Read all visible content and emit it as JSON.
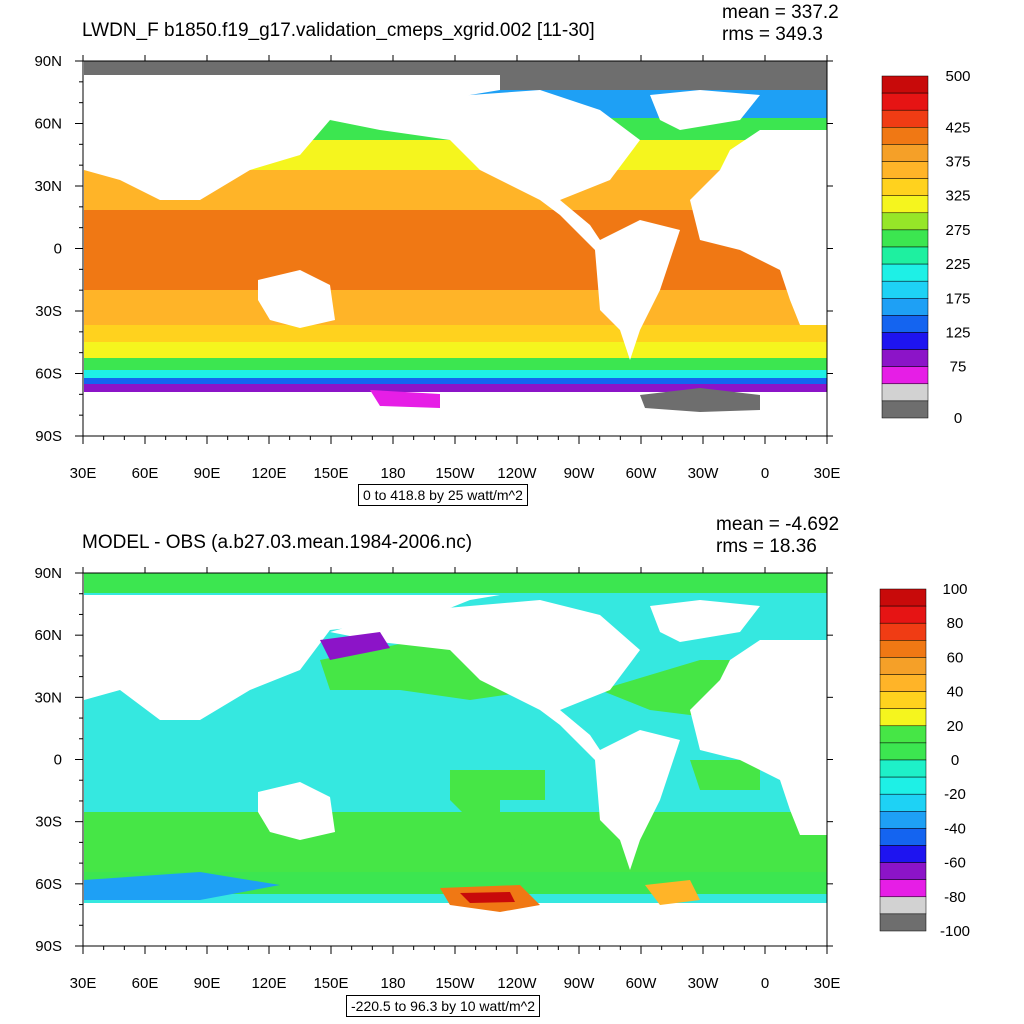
{
  "panels": [
    {
      "title": "LWDN_F b1850.f19_g17.validation_cmeps_xgrid.002 [11-30]",
      "mean_text": "mean = 337.2",
      "rms_text": "rms = 349.3",
      "range_note": "0 to 418.8 by 25 watt/m^2",
      "x_ticks": [
        "30E",
        "60E",
        "90E",
        "120E",
        "150E",
        "180",
        "150W",
        "120W",
        "90W",
        "60W",
        "30W",
        "0",
        "30E"
      ],
      "y_ticks": [
        "90N",
        "60N",
        "30N",
        "0",
        "30S",
        "60S",
        "90S"
      ],
      "colorbar": {
        "colors": [
          "#6e6e6e",
          "#d2d2d2",
          "#e61ee6",
          "#8c14c8",
          "#1e14f0",
          "#1464f0",
          "#1ea0f5",
          "#1ed2f5",
          "#1ef0e6",
          "#1ef0a0",
          "#3ce650",
          "#96e628",
          "#f5f51e",
          "#ffd21e",
          "#ffb428",
          "#f5a028",
          "#f07814",
          "#f03c14",
          "#e61414",
          "#c80a0a"
        ],
        "labels": [
          {
            "text": "500",
            "pos": 0
          },
          {
            "text": "425",
            "pos": 3
          },
          {
            "text": "375",
            "pos": 5
          },
          {
            "text": "325",
            "pos": 7
          },
          {
            "text": "275",
            "pos": 9
          },
          {
            "text": "225",
            "pos": 11
          },
          {
            "text": "175",
            "pos": 13
          },
          {
            "text": "125",
            "pos": 15
          },
          {
            "text": "75",
            "pos": 17
          },
          {
            "text": "0",
            "pos": 20
          }
        ]
      }
    },
    {
      "title": "MODEL - OBS (a.b27.03.mean.1984-2006.nc)",
      "mean_text": "mean = -4.692",
      "rms_text": "rms = 18.36",
      "range_note": "-220.5 to 96.3 by 10 watt/m^2",
      "x_ticks": [
        "30E",
        "60E",
        "90E",
        "120E",
        "150E",
        "180",
        "150W",
        "120W",
        "90W",
        "60W",
        "30W",
        "0",
        "30E"
      ],
      "y_ticks": [
        "90N",
        "60N",
        "30N",
        "0",
        "30S",
        "60S",
        "90S"
      ],
      "colorbar": {
        "colors": [
          "#6e6e6e",
          "#d2d2d2",
          "#e61ee6",
          "#8c14c8",
          "#1e14f0",
          "#1464f0",
          "#1ea0f5",
          "#1ed2f5",
          "#1ef0e6",
          "#1ef0c8",
          "#3ce650",
          "#46e646",
          "#f5f51e",
          "#ffd21e",
          "#ffb428",
          "#f5a028",
          "#f07814",
          "#f03c14",
          "#e61414",
          "#c80a0a"
        ],
        "labels": [
          {
            "text": "100",
            "pos": 0
          },
          {
            "text": "80",
            "pos": 2
          },
          {
            "text": "60",
            "pos": 4
          },
          {
            "text": "40",
            "pos": 6
          },
          {
            "text": "20",
            "pos": 8
          },
          {
            "text": "0",
            "pos": 10
          },
          {
            "text": "-20",
            "pos": 12
          },
          {
            "text": "-40",
            "pos": 14
          },
          {
            "text": "-60",
            "pos": 16
          },
          {
            "text": "-80",
            "pos": 18
          },
          {
            "text": "-100",
            "pos": 20
          }
        ]
      }
    }
  ],
  "map_colors": {
    "land": "#ffffff",
    "ice": "#6e6e6e",
    "ocean_bg": "#35e8e0"
  }
}
